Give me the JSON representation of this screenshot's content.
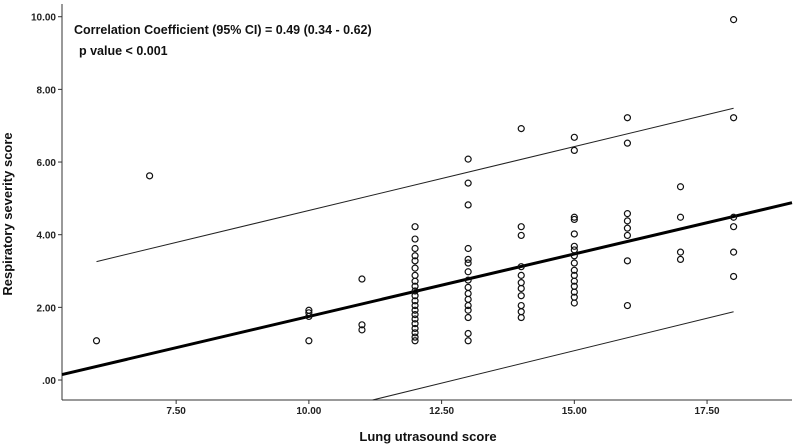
{
  "chart_data": {
    "type": "scatter",
    "xlabel": "Lung utrasound score",
    "ylabel": "Respiratory severity score",
    "xlim": [
      5.35,
      19.1
    ],
    "ylim": [
      -0.55,
      10.35
    ],
    "x_ticks": [
      7.5,
      10,
      12.5,
      15,
      17.5
    ],
    "x_tick_labels": [
      "7.50",
      "10.00",
      "12.50",
      "15.00",
      "17.50"
    ],
    "y_ticks": [
      0,
      2,
      4,
      6,
      8,
      10
    ],
    "y_tick_labels": [
      ".00",
      "2.00",
      "4.00",
      "6.00",
      "8.00",
      "10.00"
    ],
    "grid": false,
    "annotations": [
      "Correlation Coefficient (95% CI) =  0.49 (0.34 - 0.62)",
      "p value < 0.001"
    ],
    "fit_line": {
      "x1": 5.35,
      "y1": 0.15,
      "x2": 19.1,
      "y2": 4.88
    },
    "ci_upper": {
      "x1": 6.0,
      "y1": 3.26,
      "x2": 18.0,
      "y2": 7.48
    },
    "ci_lower": {
      "x1": 11.2,
      "y1": -0.55,
      "x2": 18.0,
      "y2": 1.88
    },
    "points": [
      [
        6,
        1.08
      ],
      [
        7,
        5.62
      ],
      [
        10,
        1.92
      ],
      [
        10,
        1.85
      ],
      [
        10,
        1.75
      ],
      [
        10,
        1.08
      ],
      [
        11,
        2.78
      ],
      [
        11,
        1.52
      ],
      [
        11,
        1.38
      ],
      [
        12,
        4.22
      ],
      [
        12,
        3.88
      ],
      [
        12,
        3.62
      ],
      [
        12,
        3.42
      ],
      [
        12,
        3.28
      ],
      [
        12,
        3.08
      ],
      [
        12,
        2.88
      ],
      [
        12,
        2.72
      ],
      [
        12,
        2.58
      ],
      [
        12,
        2.45
      ],
      [
        12,
        2.32
      ],
      [
        12,
        2.18
      ],
      [
        12,
        2.05
      ],
      [
        12,
        1.92
      ],
      [
        12,
        1.8
      ],
      [
        12,
        1.68
      ],
      [
        12,
        1.55
      ],
      [
        12,
        1.42
      ],
      [
        12,
        1.3
      ],
      [
        12,
        1.18
      ],
      [
        12,
        1.08
      ],
      [
        13,
        6.08
      ],
      [
        13,
        5.42
      ],
      [
        13,
        4.82
      ],
      [
        13,
        3.62
      ],
      [
        13,
        3.32
      ],
      [
        13,
        3.22
      ],
      [
        13,
        2.98
      ],
      [
        13,
        2.75
      ],
      [
        13,
        2.55
      ],
      [
        13,
        2.38
      ],
      [
        13,
        2.22
      ],
      [
        13,
        2.05
      ],
      [
        13,
        1.92
      ],
      [
        13,
        1.72
      ],
      [
        13,
        1.28
      ],
      [
        13,
        1.08
      ],
      [
        14,
        6.92
      ],
      [
        14,
        4.22
      ],
      [
        14,
        3.98
      ],
      [
        14,
        3.12
      ],
      [
        14,
        2.88
      ],
      [
        14,
        2.68
      ],
      [
        14,
        2.52
      ],
      [
        14,
        2.32
      ],
      [
        14,
        2.05
      ],
      [
        14,
        1.88
      ],
      [
        14,
        1.72
      ],
      [
        15,
        6.68
      ],
      [
        15,
        6.32
      ],
      [
        15,
        4.48
      ],
      [
        15,
        4.42
      ],
      [
        15,
        4.02
      ],
      [
        15,
        3.68
      ],
      [
        15,
        3.58
      ],
      [
        15,
        3.42
      ],
      [
        15,
        3.22
      ],
      [
        15,
        3.02
      ],
      [
        15,
        2.88
      ],
      [
        15,
        2.72
      ],
      [
        15,
        2.58
      ],
      [
        15,
        2.42
      ],
      [
        15,
        2.28
      ],
      [
        15,
        2.12
      ],
      [
        16,
        7.22
      ],
      [
        16,
        6.52
      ],
      [
        16,
        4.58
      ],
      [
        16,
        4.38
      ],
      [
        16,
        4.18
      ],
      [
        16,
        3.98
      ],
      [
        16,
        3.28
      ],
      [
        16,
        2.05
      ],
      [
        17,
        5.32
      ],
      [
        17,
        4.48
      ],
      [
        17,
        3.52
      ],
      [
        17,
        3.32
      ],
      [
        18,
        9.92
      ],
      [
        18,
        7.22
      ],
      [
        18,
        4.48
      ],
      [
        18,
        4.22
      ],
      [
        18,
        3.52
      ],
      [
        18,
        2.85
      ]
    ]
  }
}
